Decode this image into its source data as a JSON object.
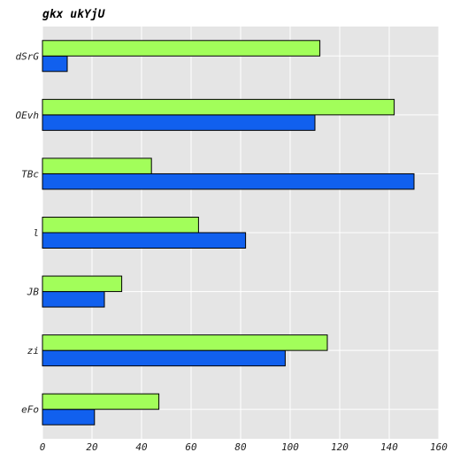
{
  "chart_data": {
    "type": "bar",
    "orientation": "horizontal",
    "title": "gkx ukYjU",
    "xlabel": "",
    "ylabel": "",
    "categories": [
      "eFo",
      "zi",
      "JB",
      "l",
      "TBc",
      "OEvh",
      "dSrG"
    ],
    "series": [
      {
        "color": "#1160ee",
        "values": [
          21,
          98,
          25,
          82,
          150,
          110,
          10
        ]
      },
      {
        "color": "#a2fe5a",
        "values": [
          47,
          115,
          32,
          63,
          44,
          142,
          112
        ]
      }
    ],
    "xlim": [
      0,
      160
    ],
    "xticks": [
      0,
      20,
      40,
      60,
      80,
      100,
      120,
      140,
      160
    ],
    "grid": true,
    "background": "#e5e5e5",
    "grid_color": "#ffffff"
  }
}
